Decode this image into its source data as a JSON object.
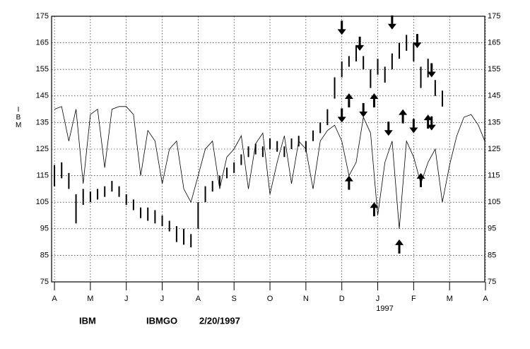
{
  "chart_data": {
    "type": "price-oscillator",
    "y_label": "IBM",
    "footer": [
      "IBM",
      "IBMGO",
      "2/20/1997"
    ],
    "year_label": {
      "x": 9,
      "text": "1997"
    },
    "xlim": [
      -0.08,
      11.98
    ],
    "ylim": [
      75,
      175
    ],
    "yticks": [
      75,
      85,
      95,
      105,
      115,
      125,
      135,
      145,
      155,
      165,
      175
    ],
    "xticks": [
      {
        "value": 0,
        "label": "A"
      },
      {
        "value": 1,
        "label": "M"
      },
      {
        "value": 2,
        "label": "J"
      },
      {
        "value": 3,
        "label": "J"
      },
      {
        "value": 4,
        "label": "A"
      },
      {
        "value": 5,
        "label": "S"
      },
      {
        "value": 6,
        "label": "O"
      },
      {
        "value": 7,
        "label": "N"
      },
      {
        "value": 8,
        "label": "D"
      },
      {
        "value": 9,
        "label": "J"
      },
      {
        "value": 10,
        "label": "F"
      },
      {
        "value": 11,
        "label": "M"
      },
      {
        "value": 12,
        "label": "A"
      }
    ],
    "grid": true,
    "price": {
      "x": [
        0.0,
        0.2,
        0.4,
        0.6,
        0.8,
        1.0,
        1.2,
        1.4,
        1.6,
        1.8,
        2.0,
        2.2,
        2.4,
        2.6,
        2.8,
        3.0,
        3.2,
        3.4,
        3.6,
        3.8,
        4.0,
        4.2,
        4.4,
        4.6,
        4.8,
        5.0,
        5.2,
        5.4,
        5.6,
        5.8,
        6.0,
        6.2,
        6.4,
        6.6,
        6.8,
        7.0,
        7.2,
        7.4,
        7.6,
        7.8,
        8.0,
        8.2,
        8.4,
        8.6,
        8.8,
        9.0,
        9.2,
        9.4,
        9.6,
        9.8,
        10.0,
        10.2,
        10.4,
        10.6,
        10.8
      ],
      "high": [
        119,
        120,
        116,
        108,
        110,
        109,
        110,
        111,
        113,
        111,
        108,
        106,
        103,
        103,
        102,
        100,
        98,
        96,
        95,
        93,
        105,
        111,
        113,
        115,
        118,
        120,
        123,
        126,
        127,
        126,
        129,
        128,
        126,
        129,
        130,
        128,
        132,
        135,
        140,
        152,
        158,
        160,
        164,
        160,
        155,
        159,
        156,
        161,
        165,
        168,
        165,
        156,
        159,
        151,
        147
      ],
      "low": [
        111,
        114,
        110,
        97,
        104,
        105,
        106,
        107,
        109,
        107,
        104,
        102,
        99,
        98,
        97,
        96,
        94,
        90,
        89,
        88,
        95,
        105,
        109,
        111,
        114,
        116,
        119,
        122,
        123,
        122,
        125,
        124,
        122,
        125,
        126,
        124,
        128,
        131,
        134,
        144,
        152,
        156,
        158,
        155,
        148,
        153,
        150,
        155,
        159,
        162,
        158,
        148,
        152,
        145,
        141
      ]
    },
    "oscillator": {
      "x": [
        0.0,
        0.2,
        0.4,
        0.6,
        0.8,
        1.0,
        1.2,
        1.4,
        1.6,
        1.8,
        2.0,
        2.2,
        2.4,
        2.6,
        2.8,
        3.0,
        3.2,
        3.4,
        3.6,
        3.8,
        4.0,
        4.2,
        4.4,
        4.6,
        4.8,
        5.0,
        5.2,
        5.4,
        5.6,
        5.8,
        6.0,
        6.2,
        6.4,
        6.6,
        6.8,
        7.0,
        7.2,
        7.4,
        7.6,
        7.8,
        8.0,
        8.2,
        8.4,
        8.6,
        8.8,
        9.0,
        9.2,
        9.4,
        9.6,
        9.8,
        10.0,
        10.2,
        10.4,
        10.6,
        10.8,
        11.0,
        11.2,
        11.4,
        11.6,
        11.8,
        11.98
      ],
      "values": [
        140,
        141,
        128,
        140,
        112,
        138,
        140,
        118,
        140,
        141,
        141,
        138,
        115,
        132,
        128,
        112,
        125,
        128,
        110,
        105,
        115,
        125,
        128,
        110,
        122,
        125,
        130,
        110,
        127,
        131,
        108,
        120,
        130,
        112,
        128,
        125,
        110,
        128,
        132,
        134,
        128,
        115,
        120,
        137,
        131,
        100,
        120,
        128,
        95,
        128,
        122,
        112,
        120,
        125,
        105,
        119,
        130,
        137,
        138,
        134,
        128
      ]
    },
    "arrows": {
      "x": [
        8.0,
        8.5,
        9.4,
        10.1,
        10.5,
        8.6,
        8.0,
        9.3,
        10.0,
        10.5,
        8.2,
        8.9,
        9.7,
        10.4,
        8.2,
        8.9,
        9.6,
        10.2
      ],
      "y": [
        168,
        162,
        170,
        163,
        152,
        137,
        135,
        130,
        131,
        132,
        146,
        146,
        140,
        138,
        115,
        105,
        91,
        116
      ],
      "direction": [
        "down",
        "down",
        "down",
        "down",
        "down",
        "down",
        "down",
        "down",
        "down",
        "down",
        "up",
        "up",
        "up",
        "up",
        "up",
        "up",
        "up",
        "up"
      ]
    }
  }
}
